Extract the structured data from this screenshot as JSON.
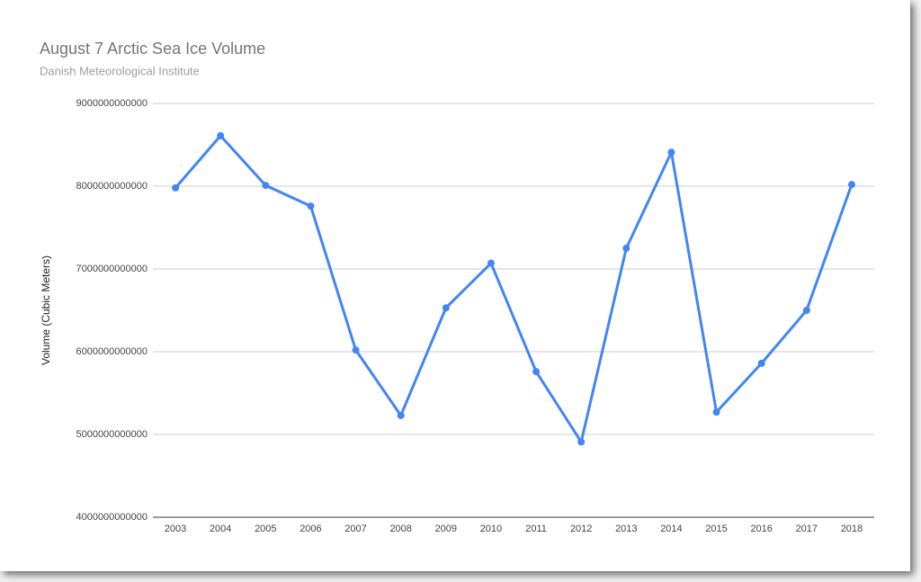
{
  "chart_data": {
    "type": "line",
    "title": "August 7 Arctic Sea Ice Volume",
    "subtitle": "Danish Meteorological Institute",
    "y_label": "Volume (Cubic Meters)",
    "categories": [
      "2003",
      "2004",
      "2005",
      "2006",
      "2007",
      "2008",
      "2009",
      "2010",
      "2011",
      "2012",
      "2013",
      "2014",
      "2015",
      "2016",
      "2017",
      "2018"
    ],
    "series": [
      {
        "name": "Volume",
        "color": "#4285f4",
        "values": [
          7980000000000,
          8610000000000,
          8010000000000,
          7760000000000,
          6020000000000,
          5230000000000,
          6530000000000,
          7070000000000,
          5760000000000,
          4910000000000,
          7250000000000,
          8410000000000,
          5270000000000,
          5860000000000,
          6500000000000,
          8020000000000
        ]
      }
    ],
    "ylim": [
      4000000000000,
      9000000000000
    ],
    "yticks": [
      4000000000000,
      5000000000000,
      6000000000000,
      7000000000000,
      8000000000000,
      9000000000000
    ],
    "grid": true
  }
}
